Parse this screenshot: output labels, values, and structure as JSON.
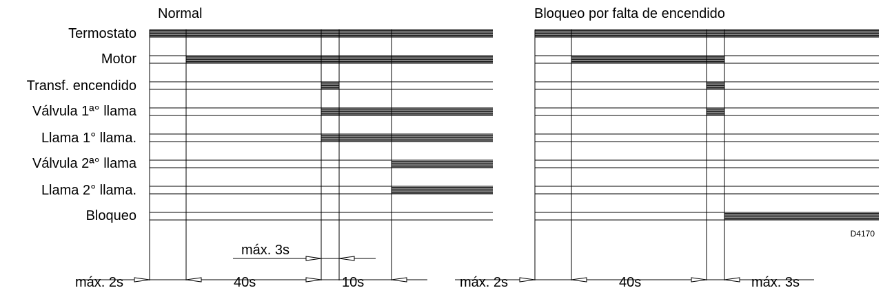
{
  "panels": [
    {
      "title": "Normal"
    },
    {
      "title": "Bloqueo por falta de encendido"
    }
  ],
  "signals": [
    "Termostato",
    "Motor",
    "Transf. encendido",
    "Válvula 1ª° llama",
    "Llama 1° llama.",
    "Válvula 2ª° llama",
    "Llama 2° llama.",
    "Bloqueo"
  ],
  "dimensions": {
    "normal": {
      "pre": "máx. 2s",
      "wait": "40s",
      "second": "10s",
      "safety": "máx. 3s"
    },
    "lockout": {
      "pre": "máx. 2s",
      "wait": "40s",
      "safety": "máx. 3s"
    }
  },
  "drawing_code": "D4170"
}
